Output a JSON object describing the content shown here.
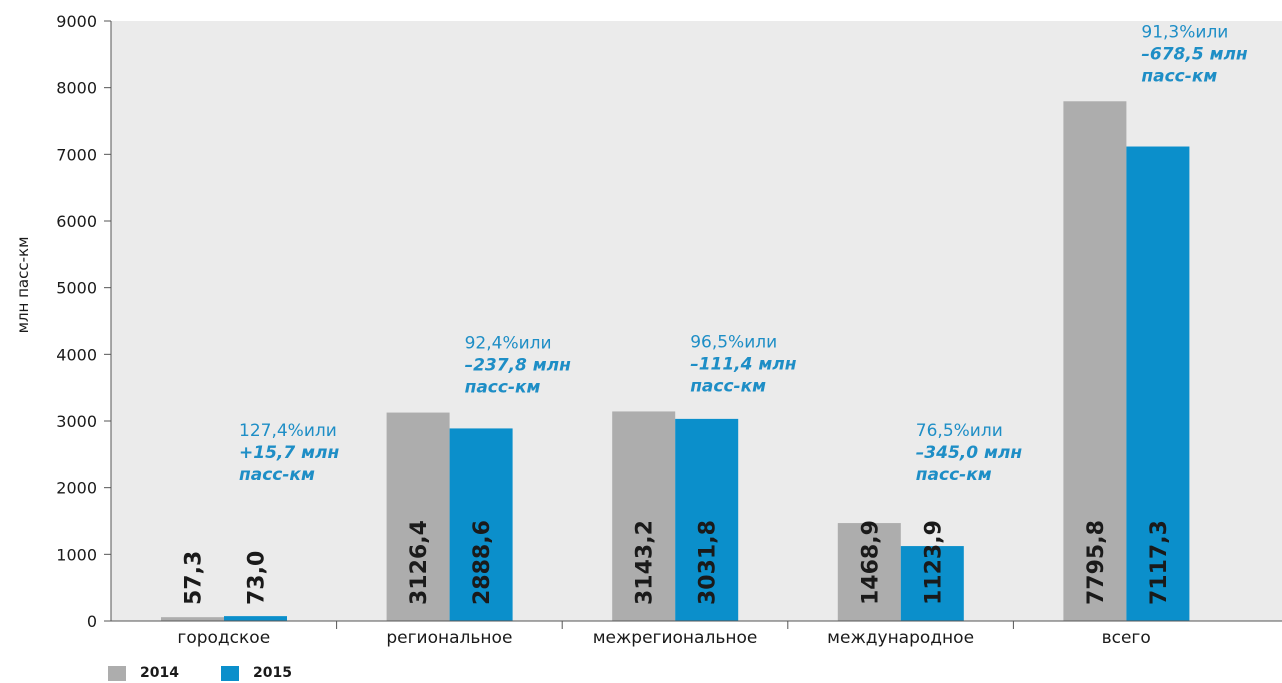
{
  "chart_data": {
    "type": "bar",
    "categories": [
      "городское",
      "региональное",
      "межрегиональное",
      "международное",
      "всего"
    ],
    "series": [
      {
        "name": "2014",
        "values": [
          57.3,
          3126.4,
          3143.2,
          1468.9,
          7795.8
        ],
        "labels": [
          "57,3",
          "3126,4",
          "3143,2",
          "1468,9",
          "7795,8"
        ]
      },
      {
        "name": "2015",
        "values": [
          73.0,
          2888.6,
          3031.8,
          1123.9,
          7117.3
        ],
        "labels": [
          "73,0",
          "2888,6",
          "3031,8",
          "1123,9",
          "7117,3"
        ]
      }
    ],
    "ylabel": "млн пасс-км",
    "ylim": [
      0,
      9000
    ],
    "yticks": [
      "0",
      "1000",
      "2000",
      "3000",
      "4000",
      "5000",
      "6000",
      "7000",
      "8000",
      "9000"
    ],
    "grid": false,
    "legend_position": "bottom-left",
    "colors": {
      "2014": "#adadad",
      "2015": "#0b8fcb",
      "annotation": "#1e8ec6",
      "plot_background": "#ebebeb"
    },
    "annotations": [
      {
        "category": "городское",
        "line1": "127,4%или",
        "line2": "+15,7 млн",
        "line3": "пасс-км"
      },
      {
        "category": "региональное",
        "line1": "92,4%или",
        "line2": "–237,8 млн",
        "line3": "пасс-км"
      },
      {
        "category": "межрегиональное",
        "line1": "96,5%или",
        "line2": "–111,4 млн",
        "line3": "пасс-км"
      },
      {
        "category": "международное",
        "line1": "76,5%или",
        "line2": "–345,0 млн",
        "line3": "пасс-км"
      },
      {
        "category": "всего",
        "line1": "91,3%или",
        "line2": "–678,5 млн",
        "line3": "пасс-км"
      }
    ]
  }
}
